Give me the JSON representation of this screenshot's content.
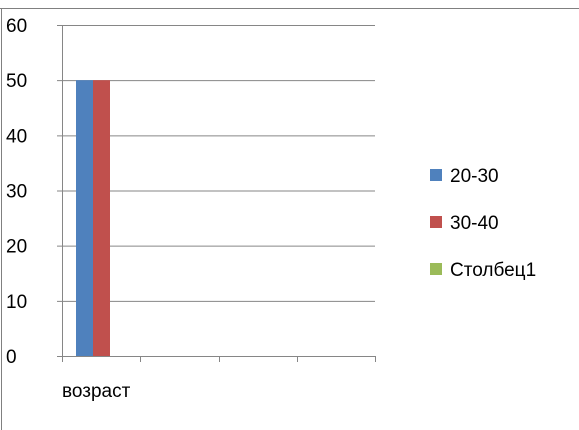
{
  "chart_data": {
    "type": "bar",
    "categories": [
      "возраст",
      "",
      "",
      ""
    ],
    "series": [
      {
        "name": "20-30",
        "values": [
          50,
          null,
          null,
          null
        ],
        "color": "#4F81BD"
      },
      {
        "name": "30-40",
        "values": [
          50,
          null,
          null,
          null
        ],
        "color": "#C0504D"
      },
      {
        "name": "Столбец1",
        "values": [
          null,
          null,
          null,
          null
        ],
        "color": "#9BBB59"
      }
    ],
    "ylim": [
      0,
      60
    ],
    "yticks": [
      "0",
      "10",
      "20",
      "30",
      "40",
      "50",
      "60"
    ],
    "grid": true,
    "legend_position": "right"
  }
}
